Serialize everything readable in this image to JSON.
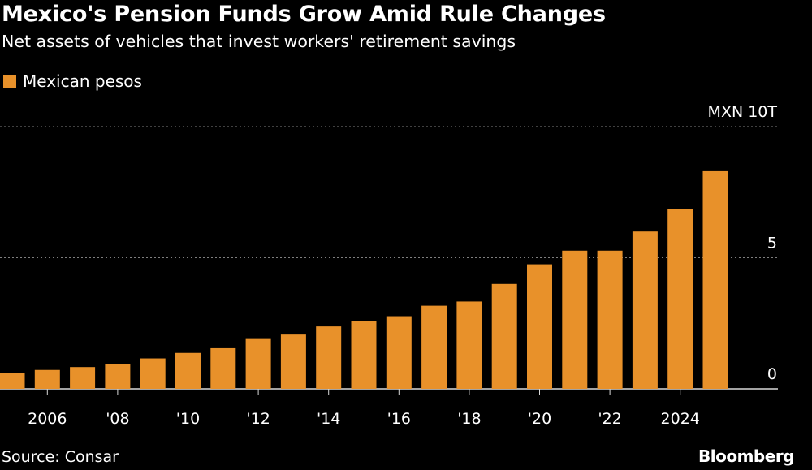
{
  "title": "Mexico's Pension Funds Grow Amid Rule Changes",
  "subtitle": "Net assets of vehicles that invest workers' retirement savings",
  "source": "Source: Consar",
  "brand": "Bloomberg",
  "colors": {
    "bar": "#E8912A",
    "background": "#000000",
    "grid": "#7f7f7f",
    "text": "#ffffff"
  },
  "chart_data": {
    "type": "bar",
    "series": [
      {
        "name": "Mexican pesos",
        "values": [
          0.6,
          0.72,
          0.83,
          0.93,
          1.16,
          1.37,
          1.55,
          1.9,
          2.07,
          2.38,
          2.58,
          2.77,
          3.17,
          3.33,
          4.0,
          4.75,
          5.27,
          5.27,
          6.0,
          6.85,
          8.3
        ]
      }
    ],
    "categories": [
      2005,
      2006,
      2007,
      2008,
      2009,
      2010,
      2011,
      2012,
      2013,
      2014,
      2015,
      2016,
      2017,
      2018,
      2019,
      2020,
      2021,
      2022,
      2023,
      2024,
      2025
    ],
    "x_tick_labels": [
      {
        "year": 2006,
        "label": "2006"
      },
      {
        "year": 2008,
        "label": "'08"
      },
      {
        "year": 2010,
        "label": "'10"
      },
      {
        "year": 2012,
        "label": "'12"
      },
      {
        "year": 2014,
        "label": "'14"
      },
      {
        "year": 2016,
        "label": "'16"
      },
      {
        "year": 2018,
        "label": "'18"
      },
      {
        "year": 2020,
        "label": "'20"
      },
      {
        "year": 2022,
        "label": "'22"
      },
      {
        "year": 2024,
        "label": "2024"
      }
    ],
    "y_ticks": [
      {
        "value": 0,
        "label": "0"
      },
      {
        "value": 5,
        "label": "5"
      },
      {
        "value": 10,
        "label": "MXN 10T"
      }
    ],
    "ylim": [
      0,
      10
    ],
    "grid": true,
    "legend_position": "top-left"
  }
}
